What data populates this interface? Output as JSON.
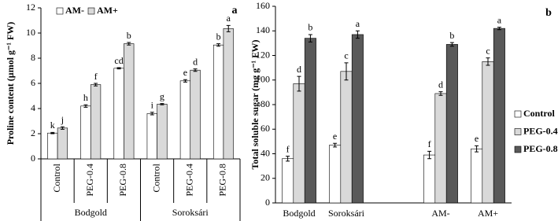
{
  "chart_data": [
    {
      "type": "bar",
      "panel_label": "a",
      "y_label": "Proline content (µmol g⁻¹ FW)",
      "categories": [
        "Control",
        "PEG-0.4",
        "PEG-0.8",
        "Control",
        "PEG-0.4",
        "PEG-0.8"
      ],
      "groups": [
        "Bodgold",
        "Soroksári"
      ],
      "series": [
        {
          "name": "AM-",
          "color": "#ffffff",
          "values": [
            2.05,
            4.2,
            7.2,
            3.6,
            6.2,
            9.05
          ],
          "errors": [
            0.05,
            0.1,
            0.05,
            0.1,
            0.1,
            0.1
          ],
          "letters": [
            "k",
            "h",
            "cd",
            "i",
            "e",
            "b"
          ]
        },
        {
          "name": "AM+",
          "color": "#d9d9d9",
          "values": [
            2.45,
            5.9,
            9.15,
            4.35,
            7.05,
            10.35
          ],
          "errors": [
            0.1,
            0.1,
            0.1,
            0.05,
            0.1,
            0.25
          ],
          "letters": [
            "j",
            "f",
            "b",
            "g",
            "d",
            "a"
          ]
        }
      ],
      "ylim": [
        0,
        12
      ],
      "yticks": [
        0,
        2,
        4,
        6,
        8,
        10,
        12
      ],
      "legend": "top-left"
    },
    {
      "type": "bar",
      "panel_label": "b",
      "y_label": "Total soluble sugar (mg g⁻¹ FW)",
      "categories": [
        "Bodgold",
        "Soroksári",
        null,
        "AM-",
        "AM+"
      ],
      "series": [
        {
          "name": "Control",
          "color": "#ffffff",
          "values": [
            36,
            47,
            null,
            39,
            44
          ],
          "errors": [
            2,
            1.5,
            null,
            3,
            2.5
          ],
          "letters": [
            "f",
            "e",
            null,
            "f",
            "e"
          ]
        },
        {
          "name": "PEG-0.4",
          "color": "#d9d9d9",
          "values": [
            97,
            107,
            null,
            89,
            115
          ],
          "errors": [
            6,
            7,
            null,
            1.5,
            3
          ],
          "letters": [
            "d",
            "c",
            null,
            "d",
            "c"
          ]
        },
        {
          "name": "PEG-0.8",
          "color": "#595959",
          "values": [
            134,
            137,
            null,
            129,
            142
          ],
          "errors": [
            3,
            3,
            null,
            1.5,
            1
          ],
          "letters": [
            "b",
            "a",
            null,
            "b",
            "a"
          ]
        }
      ],
      "ylim": [
        0,
        160
      ],
      "yticks": [
        0,
        20,
        40,
        60,
        80,
        100,
        120,
        140,
        160
      ],
      "legend": "right"
    }
  ]
}
